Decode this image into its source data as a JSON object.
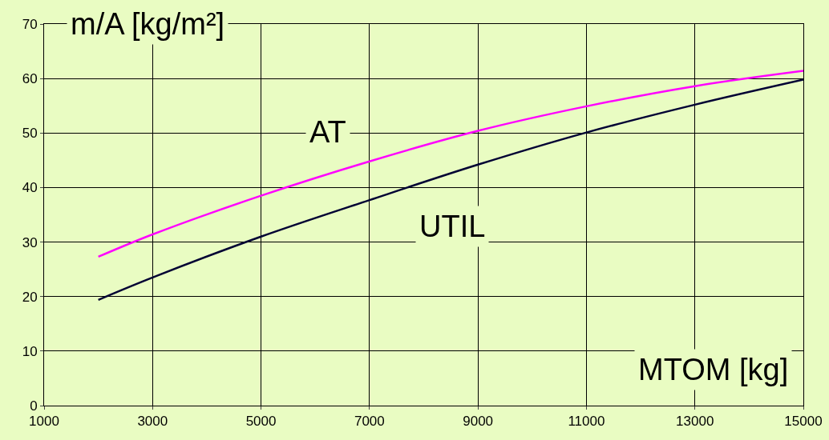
{
  "chart_data": {
    "type": "line",
    "xlabel": "MTOM [kg]",
    "ylabel": "m/A [kg/m²]",
    "x": [
      2000,
      3000,
      5000,
      7000,
      9000,
      11000,
      13000,
      15000
    ],
    "series": [
      {
        "name": "AT",
        "color": "#ff00ff",
        "values": [
          27.3,
          31.4,
          38.5,
          44.8,
          50.4,
          54.9,
          58.6,
          61.4
        ]
      },
      {
        "name": "UTIL",
        "color": "#000033",
        "values": [
          19.4,
          23.5,
          31.0,
          37.7,
          44.2,
          50.1,
          55.2,
          59.8
        ]
      }
    ],
    "xlim": [
      1000,
      15000
    ],
    "xticks": [
      1000,
      3000,
      5000,
      7000,
      9000,
      11000,
      13000,
      15000
    ],
    "ylim": [
      0,
      70
    ],
    "yticks": [
      0,
      10,
      20,
      30,
      40,
      50,
      60,
      70
    ],
    "grid": true,
    "legend": false,
    "marker": "none",
    "line_style": "solid"
  }
}
